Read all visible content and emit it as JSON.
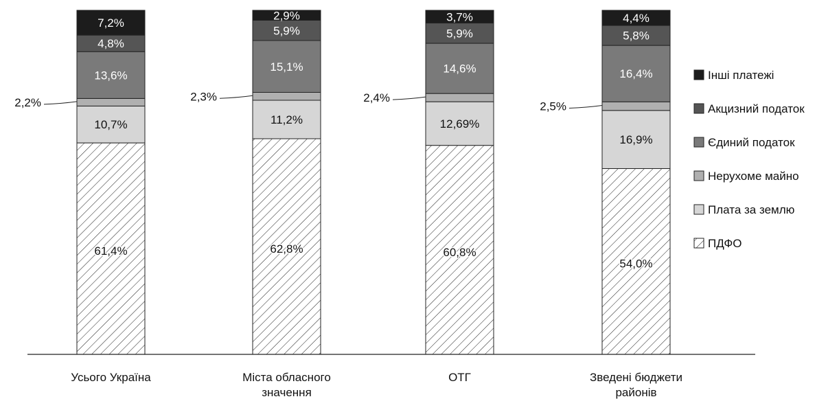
{
  "chart_data": {
    "type": "bar",
    "stacked": true,
    "categories": [
      [
        "Усього Україна"
      ],
      [
        "Міста обласного",
        "значення"
      ],
      [
        "ОТГ"
      ],
      [
        "Зведені бюджети",
        "районів"
      ]
    ],
    "series": [
      {
        "name": "ПДФО",
        "color": "#ffffff",
        "pattern": "hatch",
        "values": [
          61.4,
          62.8,
          60.8,
          54.0
        ],
        "labels": [
          "61,4%",
          "62,8%",
          "60,8%",
          "54,0%"
        ]
      },
      {
        "name": "Плата за землю",
        "color": "#d6d6d6",
        "values": [
          10.7,
          11.2,
          12.69,
          16.9
        ],
        "labels": [
          "10,7%",
          "11,2%",
          "12,69%",
          "16,9%"
        ]
      },
      {
        "name": "Нерухоме майно",
        "color": "#b0b0b0",
        "values": [
          2.2,
          2.3,
          2.4,
          2.5
        ],
        "labels": [
          "2,2%",
          "2,3%",
          "2,4%",
          "2,5%"
        ]
      },
      {
        "name": "Єдиний податок",
        "color": "#7a7a7a",
        "values": [
          13.6,
          15.1,
          14.6,
          16.4
        ],
        "labels": [
          "13,6%",
          "15,1%",
          "14,6%",
          "16,4%"
        ]
      },
      {
        "name": "Акцизний податок",
        "color": "#555555",
        "values": [
          4.8,
          5.9,
          5.9,
          5.8
        ],
        "labels": [
          "4,8%",
          "5,9%",
          "5,9%",
          "5,8%"
        ]
      },
      {
        "name": "Інші платежі",
        "color": "#1c1c1c",
        "values": [
          7.2,
          2.9,
          3.7,
          4.4
        ],
        "labels": [
          "7,2%",
          "2,9%",
          "3,7%",
          "4,4%"
        ]
      }
    ],
    "legend_order": [
      "Інші платежі",
      "Акцизний податок",
      "Єдиний податок",
      "Нерухоме майно",
      "Плата за землю",
      "ПДФО"
    ],
    "legend_position": "right",
    "ylim": [
      0,
      100
    ],
    "grid": false
  }
}
